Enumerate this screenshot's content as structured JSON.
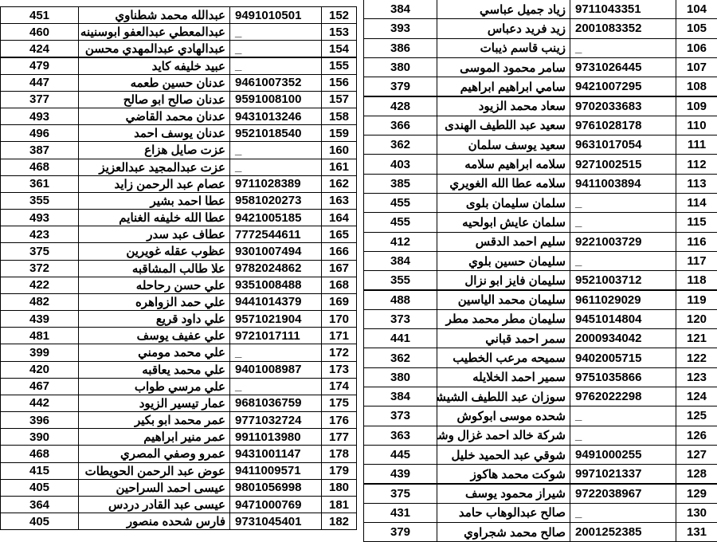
{
  "left_table": {
    "rows": [
      [
        "152",
        "9491010501",
        "عبدالله محمد شطناوي",
        "451"
      ],
      [
        "153",
        "_",
        "عبدالمعطي عبدالعفو ابوسنينه",
        "460"
      ],
      [
        "154",
        "_",
        "عبدالهادي عبدالمهدي محسن",
        "424"
      ],
      [
        "155",
        "_",
        "عبيد خليفه كايد",
        "479"
      ],
      [
        "156",
        "9461007352",
        "عدنان حسين طعمه",
        "447"
      ],
      [
        "157",
        "9591008100",
        "عدنان صالح ابو  صالح",
        "377"
      ],
      [
        "158",
        "9431013246",
        "عدنان محمد القاضي",
        "493"
      ],
      [
        "159",
        "9521018540",
        "عدنان يوسف احمد",
        "496"
      ],
      [
        "160",
        "_",
        "عزت صايل هزاع",
        "387"
      ],
      [
        "161",
        "_",
        "عزت عبدالمجيد عبدالعزيز",
        "468"
      ],
      [
        "162",
        "9711028389",
        "عصام عبد الرحمن زايد",
        "361"
      ],
      [
        "163",
        "9581020273",
        "عطا احمد بشير",
        "355"
      ],
      [
        "164",
        "9421005185",
        "عطا الله خليفه الغنايم",
        "493"
      ],
      [
        "165",
        "7772544611",
        "عطاف عبد سدر",
        "423"
      ],
      [
        "166",
        "9301007494",
        "عظوب عقله غويرين",
        "375"
      ],
      [
        "167",
        "9782024862",
        "علا طالب المشاقبه",
        "372"
      ],
      [
        "168",
        "9351008488",
        "علي حسن رحاحله",
        "422"
      ],
      [
        "169",
        "9441014379",
        "علي حمد الزواهره",
        "482"
      ],
      [
        "170",
        "9571021904",
        "علي داود قريع",
        "439"
      ],
      [
        "171",
        "9721017111",
        "علي عفيف يوسف",
        "481"
      ],
      [
        "172",
        "_",
        "علي محمد مومني",
        "399"
      ],
      [
        "173",
        "9401008987",
        "علي محمد يعاقبه",
        "420"
      ],
      [
        "174",
        "_",
        "علي مرسي طواب",
        "467"
      ],
      [
        "175",
        "9681036759",
        "عمار تيسير الزيود",
        "442"
      ],
      [
        "176",
        "9771032724",
        "عمر محمد ابو بكير",
        "396"
      ],
      [
        "177",
        "9911013980",
        "عمر منير ابراهيم",
        "390"
      ],
      [
        "178",
        "9431001147",
        "عمرو وصفي المصري",
        "468"
      ],
      [
        "179",
        "9411009571",
        "عوض عبد الرحمن الحويطات",
        "415"
      ],
      [
        "180",
        "9801056998",
        "عيسى احمد السراحين",
        "405"
      ],
      [
        "181",
        "9471000769",
        "عيسى عبد القادر دردس",
        "364"
      ],
      [
        "182",
        "9731045401",
        "فارس شحده منصور",
        "405"
      ]
    ]
  },
  "right_table": {
    "rows": [
      [
        "104",
        "9711043351",
        "زياد جميل عباسي",
        "384"
      ],
      [
        "105",
        "2001083352",
        "زيد فريد دعباس",
        "393"
      ],
      [
        "106",
        "_",
        "زينب قاسم ذيبات",
        "386"
      ],
      [
        "107",
        "9731026445",
        "سامر محمود الموسى",
        "380"
      ],
      [
        "108",
        "9421007295",
        "سامي ابراهيم ابراهيم",
        "379"
      ],
      [
        "109",
        "9702033683",
        "سعاد محمد الزيود",
        "428"
      ],
      [
        "110",
        "9761028178",
        "سعيد عبد اللطيف الهندى",
        "366"
      ],
      [
        "111",
        "9631017054",
        "سعيد يوسف سلمان",
        "362"
      ],
      [
        "112",
        "9271002515",
        "سلامه ابراهيم سلامه",
        "403"
      ],
      [
        "113",
        "9411003894",
        "سلامه عطا الله الغويري",
        "385"
      ],
      [
        "114",
        "_",
        "سلمان سليمان بلوى",
        "455"
      ],
      [
        "115",
        "_",
        "سلمان عايش ابولحيه",
        "455"
      ],
      [
        "116",
        "9221003729",
        "سليم احمد الدقس",
        "412"
      ],
      [
        "117",
        "_",
        "سليمان حسين بلوي",
        "384"
      ],
      [
        "118",
        "9521003712",
        "سليمان فايز ابو نزال",
        "355"
      ],
      [
        "119",
        "9611029029",
        "سليمان محمد الياسين",
        "488"
      ],
      [
        "120",
        "9451014804",
        "سليمان مطر محمد مطر",
        "373"
      ],
      [
        "121",
        "2000934042",
        "سمر احمد قباني",
        "441"
      ],
      [
        "122",
        "9402005715",
        "سميحه مرعب الخطيب",
        "362"
      ],
      [
        "123",
        "9751035866",
        "سمير احمد الخلايله",
        "380"
      ],
      [
        "124",
        "9762022298",
        "سوزان عبد اللطيف الشيشاني",
        "384"
      ],
      [
        "125",
        "_",
        "شحده موسى ابوكوش",
        "373"
      ],
      [
        "126",
        "_",
        "شركة خالد احمد غزال وشريكه",
        "363"
      ],
      [
        "127",
        "9491000255",
        "شوقي عبد الحميد خليل",
        "445"
      ],
      [
        "128",
        "9971021337",
        "شوكت محمد هاكوز",
        "439"
      ],
      [
        "129",
        "9722038967",
        "شيراز محمود يوسف",
        "375"
      ],
      [
        "130",
        "_",
        "صالح عبدالوهاب حامد",
        "431"
      ],
      [
        "131",
        "2001252385",
        "صالح محمد شجراوي",
        "379"
      ]
    ]
  }
}
